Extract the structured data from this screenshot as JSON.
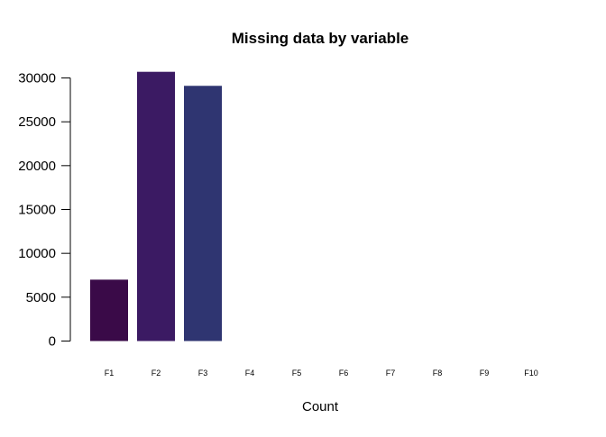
{
  "chart_data": {
    "type": "bar",
    "title": "Missing data by variable",
    "xlabel": "Count",
    "ylabel": "",
    "categories": [
      "F1",
      "F2",
      "F3",
      "F4",
      "F5",
      "F6",
      "F7",
      "F8",
      "F9",
      "F10"
    ],
    "values": [
      7000,
      30700,
      29100,
      0,
      0,
      0,
      0,
      0,
      0,
      0
    ],
    "colors": [
      "#3A0A48",
      "#3B1A63",
      "#2F3571",
      "#26456B",
      "#1F5B71",
      "#1E7377",
      "#2A8A71",
      "#45A567",
      "#7EBE4B",
      "#C2D83A"
    ],
    "ylim": [
      0,
      30000
    ],
    "yticks": [
      0,
      5000,
      10000,
      15000,
      20000,
      25000,
      30000
    ],
    "grid": false,
    "legend": "none"
  }
}
